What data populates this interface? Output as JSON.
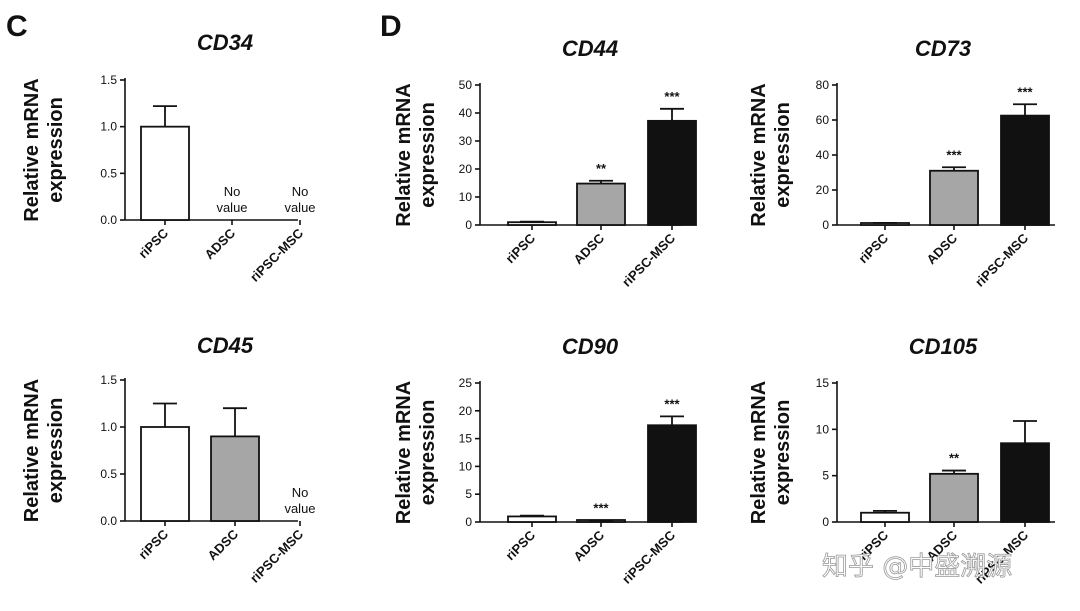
{
  "panel_labels": {
    "left": "C",
    "right": "D"
  },
  "watermark": "知乎 @中盛溯源",
  "colors": {
    "riPSC": "#ffffff",
    "ADSC": "#a6a6a6",
    "riPSC-MSC": "#111111",
    "axis": "#111111"
  },
  "chart_data": [
    {
      "type": "bar",
      "panel": "C",
      "title": "CD34",
      "ylabel": "Relative mRNA expression",
      "xlabel": "",
      "categories": [
        "riPSC",
        "ADSC",
        "riPSC-MSC"
      ],
      "values": [
        1.0,
        null,
        null
      ],
      "errors": [
        0.22,
        null,
        null
      ],
      "annotations": [
        "",
        "No value",
        "No value"
      ],
      "ylim": [
        0,
        1.5
      ],
      "yticks": [
        "0.0",
        "0.5",
        "1.0",
        "1.5"
      ],
      "grid": false
    },
    {
      "type": "bar",
      "panel": "C",
      "title": "CD45",
      "ylabel": "Relative mRNA expression",
      "xlabel": "",
      "categories": [
        "riPSC",
        "ADSC",
        "riPSC-MSC"
      ],
      "values": [
        1.0,
        0.9,
        null
      ],
      "errors": [
        0.25,
        0.3,
        null
      ],
      "annotations": [
        "",
        "",
        "No value"
      ],
      "ylim": [
        0,
        1.5
      ],
      "yticks": [
        "0.0",
        "0.5",
        "1.0",
        "1.5"
      ],
      "grid": false
    },
    {
      "type": "bar",
      "panel": "D",
      "title": "CD44",
      "ylabel": "Relative mRNA expression",
      "xlabel": "",
      "categories": [
        "riPSC",
        "ADSC",
        "riPSC-MSC"
      ],
      "values": [
        1.0,
        14.8,
        37.2
      ],
      "errors": [
        0.2,
        1.0,
        4.3
      ],
      "annotations": [
        "",
        "**",
        "***"
      ],
      "ylim": [
        0,
        50
      ],
      "yticks": [
        "0",
        "10",
        "20",
        "30",
        "40",
        "50"
      ],
      "grid": false
    },
    {
      "type": "bar",
      "panel": "D",
      "title": "CD73",
      "ylabel": "Relative mRNA expression",
      "xlabel": "",
      "categories": [
        "riPSC",
        "ADSC",
        "riPSC-MSC"
      ],
      "values": [
        1.0,
        31.0,
        62.5
      ],
      "errors": [
        0.2,
        2.0,
        6.5
      ],
      "annotations": [
        "",
        "***",
        "***"
      ],
      "ylim": [
        0,
        80
      ],
      "yticks": [
        "0",
        "20",
        "40",
        "60",
        "80"
      ],
      "grid": false
    },
    {
      "type": "bar",
      "panel": "D",
      "title": "CD90",
      "ylabel": "Relative mRNA expression",
      "xlabel": "",
      "categories": [
        "riPSC",
        "ADSC",
        "riPSC-MSC"
      ],
      "values": [
        1.0,
        0.2,
        17.4
      ],
      "errors": [
        0.15,
        0.05,
        1.6
      ],
      "annotations": [
        "",
        "***",
        "***"
      ],
      "ylim": [
        0,
        25
      ],
      "yticks": [
        "0",
        "5",
        "10",
        "15",
        "20",
        "25"
      ],
      "grid": false
    },
    {
      "type": "bar",
      "panel": "D",
      "title": "CD105",
      "ylabel": "Relative mRNA expression",
      "xlabel": "",
      "categories": [
        "riPSC",
        "ADSC",
        "riPSC-MSC"
      ],
      "values": [
        1.0,
        5.2,
        8.5
      ],
      "errors": [
        0.2,
        0.35,
        2.4
      ],
      "annotations": [
        "",
        "**",
        ""
      ],
      "ylim": [
        0,
        15
      ],
      "yticks": [
        "0",
        "5",
        "10",
        "15"
      ],
      "grid": false
    }
  ]
}
